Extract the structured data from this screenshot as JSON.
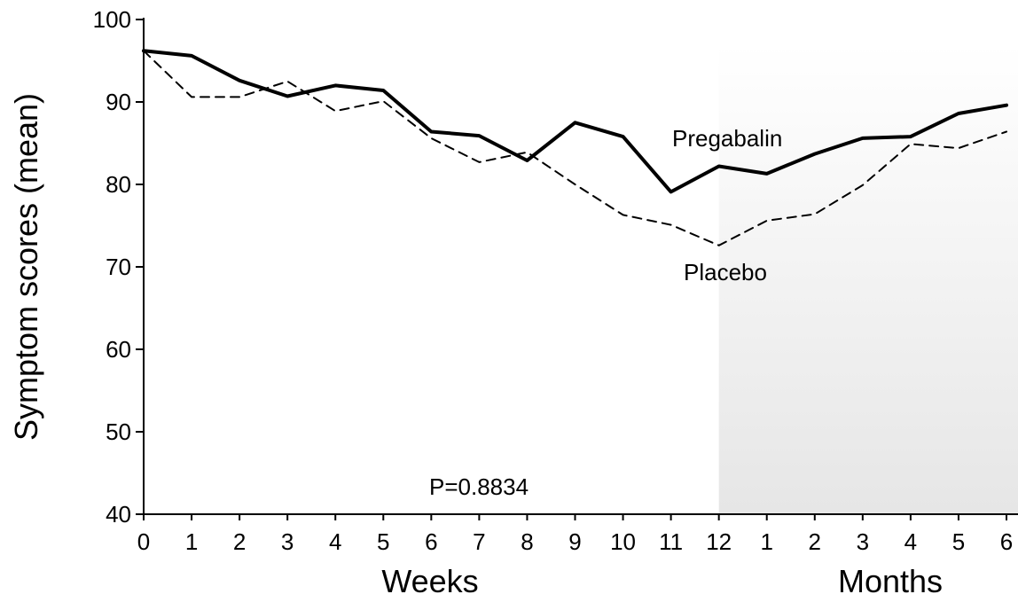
{
  "chart_data": {
    "type": "line",
    "x": [
      "0",
      "1",
      "2",
      "3",
      "4",
      "5",
      "6",
      "7",
      "8",
      "9",
      "10",
      "11",
      "12",
      "1",
      "2",
      "3",
      "4",
      "5",
      "6"
    ],
    "series": [
      {
        "name": "Pregabalin",
        "values": [
          96.2,
          95.6,
          92.6,
          90.7,
          92.0,
          91.4,
          86.4,
          85.9,
          82.9,
          87.5,
          85.8,
          79.1,
          82.2,
          81.3,
          83.7,
          85.6,
          85.8,
          88.6,
          89.6
        ],
        "style": "solid",
        "color": "#000000"
      },
      {
        "name": "Placebo",
        "values": [
          96.2,
          90.6,
          90.6,
          92.5,
          88.9,
          90.1,
          85.6,
          82.7,
          83.9,
          80.0,
          76.3,
          75.1,
          72.6,
          75.6,
          76.4,
          79.9,
          84.9,
          84.4,
          86.4
        ],
        "style": "dashed",
        "color": "#000000"
      }
    ],
    "ylabel": "Symptom scores (mean)",
    "ylim": [
      40,
      100
    ],
    "yticks": [
      40,
      50,
      60,
      70,
      80,
      90,
      100
    ],
    "xgroups": [
      {
        "label": "Weeks"
      },
      {
        "label": "Months"
      }
    ],
    "shaded_region_start_index": 12,
    "shade_color": "#e6e6e6",
    "annotation": "P=0.8834",
    "grid": false
  }
}
